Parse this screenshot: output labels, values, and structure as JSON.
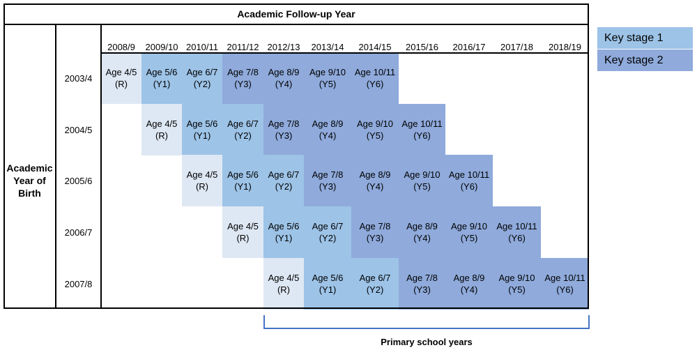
{
  "title": "Academic Follow-up Year",
  "side_label": [
    "Academic",
    "Year of",
    "Birth"
  ],
  "years": [
    "2008/9",
    "2009/10",
    "2010/11",
    "2011/12",
    "2012/13",
    "2013/14",
    "2014/15",
    "2015/16",
    "2016/17",
    "2017/18",
    "2018/19"
  ],
  "cohorts": [
    {
      "label": "2003/4",
      "start": 0
    },
    {
      "label": "2004/5",
      "start": 1
    },
    {
      "label": "2005/6",
      "start": 2
    },
    {
      "label": "2006/7",
      "start": 3
    },
    {
      "label": "2007/8",
      "start": 4
    }
  ],
  "stages": [
    {
      "age": "Age 4/5",
      "grade": "(R)",
      "group": "reception"
    },
    {
      "age": "Age 5/6",
      "grade": "(Y1)",
      "group": "ks1"
    },
    {
      "age": "Age 6/7",
      "grade": "(Y2)",
      "group": "ks1"
    },
    {
      "age": "Age 7/8",
      "grade": "(Y3)",
      "group": "ks2"
    },
    {
      "age": "Age 8/9",
      "grade": "(Y4)",
      "group": "ks2"
    },
    {
      "age": "Age 9/10",
      "grade": "(Y5)",
      "group": "ks2"
    },
    {
      "age": "Age 10/11",
      "grade": "(Y6)",
      "group": "ks2"
    }
  ],
  "colors": {
    "reception": "#dee8f4",
    "ks1": "#9dc3e7",
    "ks2": "#8faadb"
  },
  "legend": [
    {
      "label": "Key stage 1",
      "group": "ks1"
    },
    {
      "label": "Key stage 2",
      "group": "ks2"
    }
  ],
  "bracket_label": "Primary school years"
}
